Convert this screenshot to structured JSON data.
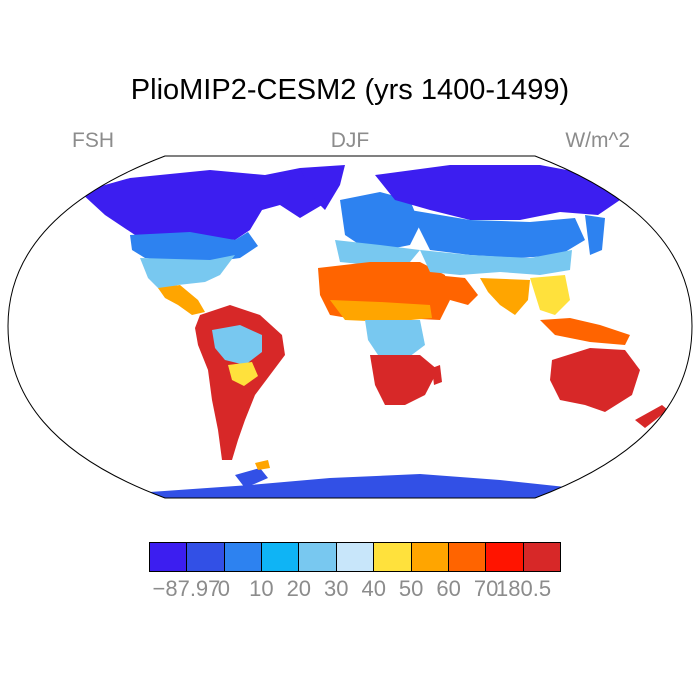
{
  "title": "PlioMIP2-CESM2 (yrs 1400-1499)",
  "labels": {
    "left": "FSH",
    "center": "DJF",
    "right": "W/m^2"
  },
  "colorbar": {
    "colors": [
      "#3c1ef0",
      "#3250e6",
      "#2d82f0",
      "#0fb4f5",
      "#78c8f0",
      "#c8e6fa",
      "#ffe13c",
      "#ffa500",
      "#ff6400",
      "#ff1400",
      "#d72828"
    ],
    "tick_labels": [
      "−87.97",
      "0",
      "10",
      "20",
      "30",
      "40",
      "50",
      "60",
      "70",
      "180.5"
    ]
  },
  "map": {
    "land_shading": "blue-to-red",
    "ocean_color": "#ffffff"
  }
}
